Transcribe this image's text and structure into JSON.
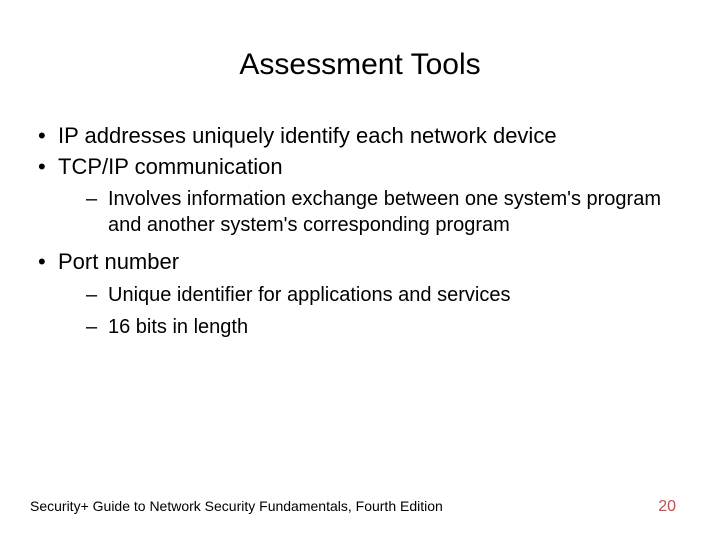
{
  "slide": {
    "title": "Assessment Tools",
    "bullets": {
      "b1": "IP addresses uniquely identify each network device",
      "b2": "TCP/IP communication",
      "b2_1": "Involves information exchange between one system's program and another system's corresponding program",
      "b3": "Port number",
      "b3_1": "Unique identifier for applications and services",
      "b3_2": "16 bits in length"
    },
    "footer": "Security+ Guide to Network Security Fundamentals, Fourth Edition",
    "page_number": "20"
  },
  "styling": {
    "background_color": "#ffffff",
    "text_color": "#000000",
    "page_number_color": "#c05050",
    "title_fontsize": 30,
    "body_fontsize_l1": 22,
    "body_fontsize_l2": 20,
    "footer_fontsize": 14,
    "font_family": "Arial"
  }
}
